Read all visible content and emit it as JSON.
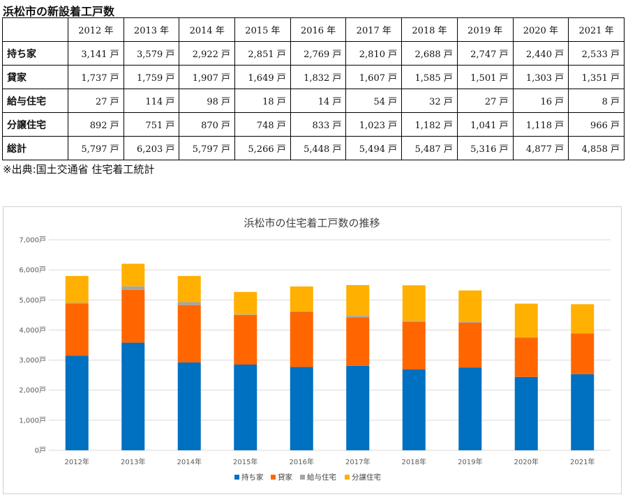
{
  "table": {
    "title": "浜松市の新設着工戸数",
    "header": [
      "",
      "2012 年",
      "2013 年",
      "2014 年",
      "2015 年",
      "2016 年",
      "2017 年",
      "2018 年",
      "2019 年",
      "2020 年",
      "2021 年"
    ],
    "rows": [
      {
        "label": "持ち家",
        "values": [
          "3,141 戸",
          "3,579 戸",
          "2,922 戸",
          "2,851 戸",
          "2,769 戸",
          "2,810 戸",
          "2,688 戸",
          "2,747 戸",
          "2,440 戸",
          "2,533 戸"
        ]
      },
      {
        "label": "貸家",
        "values": [
          "1,737 戸",
          "1,759 戸",
          "1,907 戸",
          "1,649 戸",
          "1,832 戸",
          "1,607 戸",
          "1,585 戸",
          "1,501 戸",
          "1,303 戸",
          "1,351 戸"
        ]
      },
      {
        "label": "給与住宅",
        "values": [
          "27 戸",
          "114 戸",
          "98 戸",
          "18 戸",
          "14 戸",
          "54 戸",
          "32 戸",
          "27 戸",
          "16 戸",
          "8 戸"
        ]
      },
      {
        "label": "分譲住宅",
        "values": [
          "892 戸",
          "751 戸",
          "870 戸",
          "748 戸",
          "833 戸",
          "1,023 戸",
          "1,182 戸",
          "1,041 戸",
          "1,118 戸",
          "966 戸"
        ]
      },
      {
        "label": "総計",
        "values": [
          "5,797 戸",
          "6,203 戸",
          "5,797 戸",
          "5,266 戸",
          "5,448 戸",
          "5,494 戸",
          "5,487 戸",
          "5,316 戸",
          "4,877 戸",
          "4,858 戸"
        ]
      }
    ]
  },
  "source": "※出典:国土交通省  住宅着工統計",
  "chart_data": {
    "type": "bar",
    "stacked": true,
    "title": "浜松市の住宅着工戸数の推移",
    "categories": [
      "2012年",
      "2013年",
      "2014年",
      "2015年",
      "2016年",
      "2017年",
      "2018年",
      "2019年",
      "2020年",
      "2021年"
    ],
    "series": [
      {
        "name": "持ち家",
        "color": "#0070C0",
        "values": [
          3141,
          3579,
          2922,
          2851,
          2769,
          2810,
          2688,
          2747,
          2440,
          2533
        ]
      },
      {
        "name": "貸家",
        "color": "#FF6600",
        "values": [
          1737,
          1759,
          1907,
          1649,
          1832,
          1607,
          1585,
          1501,
          1303,
          1351
        ]
      },
      {
        "name": "給与住宅",
        "color": "#A5A5A5",
        "values": [
          27,
          114,
          98,
          18,
          14,
          54,
          32,
          27,
          16,
          8
        ]
      },
      {
        "name": "分譲住宅",
        "color": "#FFB000",
        "values": [
          892,
          751,
          870,
          748,
          833,
          1023,
          1182,
          1041,
          1118,
          966
        ]
      }
    ],
    "ylim": [
      0,
      7000
    ],
    "yticks": [
      0,
      1000,
      2000,
      3000,
      4000,
      5000,
      6000,
      7000
    ],
    "ytick_labels": [
      "0戸",
      "1,000戸",
      "2,000戸",
      "3,000戸",
      "4,000戸",
      "5,000戸",
      "6,000戸",
      "7,000戸"
    ],
    "grid": true,
    "legend": "bottom"
  }
}
